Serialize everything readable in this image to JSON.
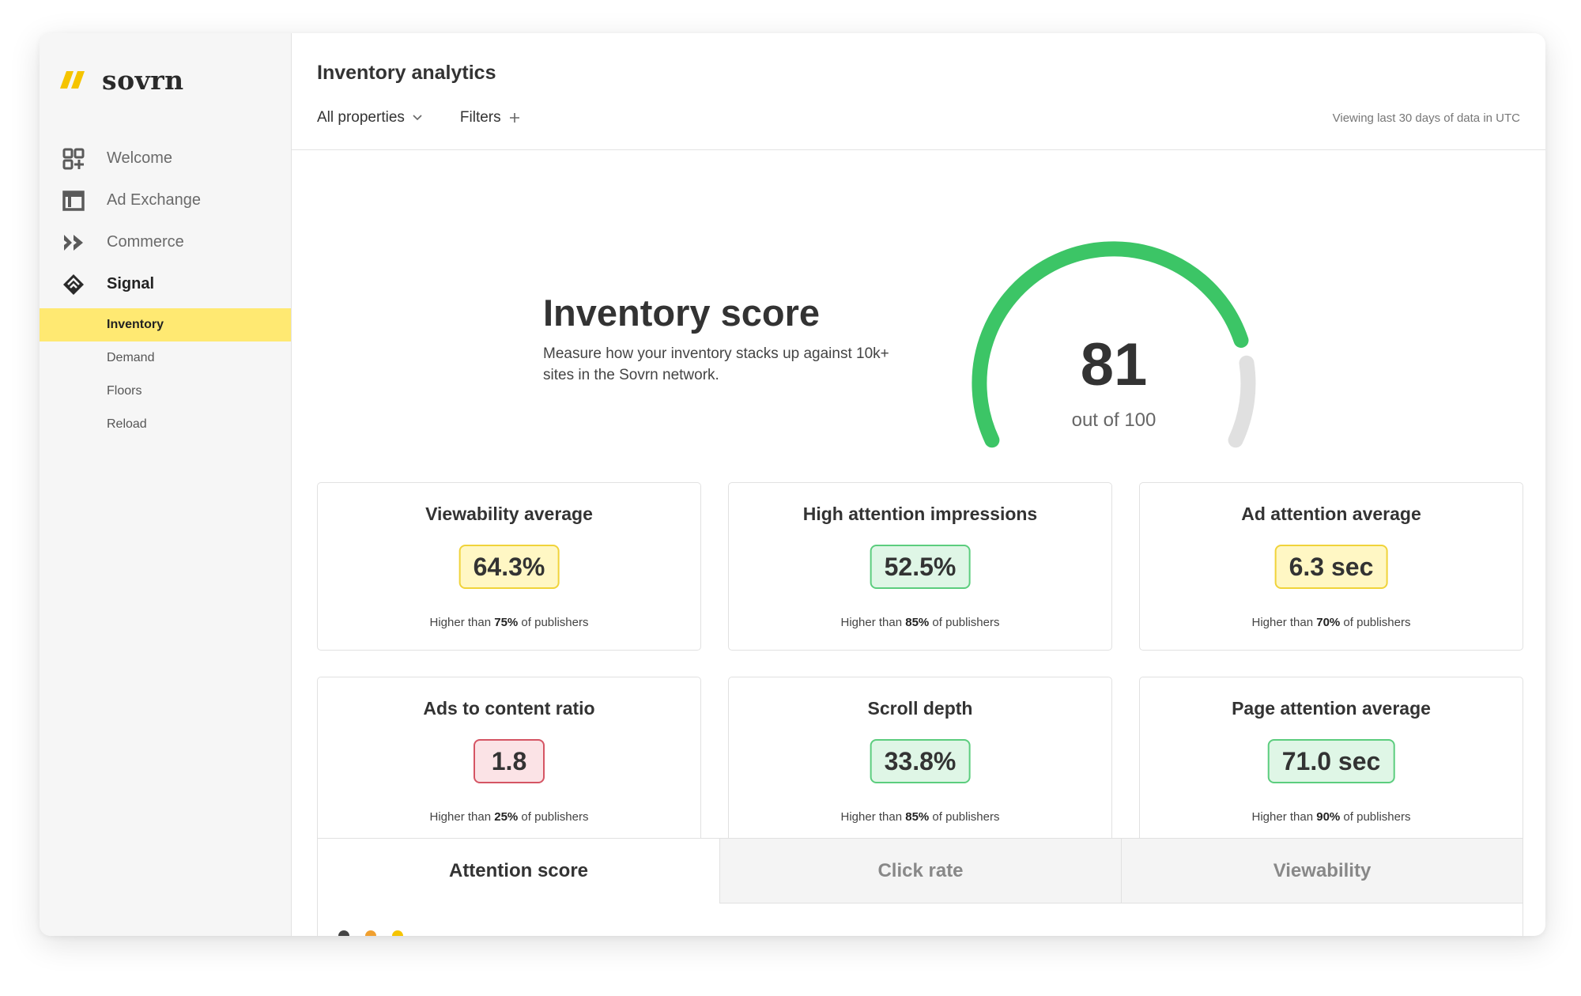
{
  "brand": {
    "name": "sovrn",
    "accent": "#f5c400"
  },
  "sidebar": {
    "items": [
      {
        "label": "Welcome",
        "icon": "grid-plus-icon"
      },
      {
        "label": "Ad Exchange",
        "icon": "window-icon"
      },
      {
        "label": "Commerce",
        "icon": "double-chevron-icon"
      },
      {
        "label": "Signal",
        "icon": "signal-diamond-icon"
      }
    ],
    "subitems": [
      "Inventory",
      "Demand",
      "Floors",
      "Reload"
    ],
    "active_subitem": "Inventory"
  },
  "header": {
    "title": "Inventory analytics",
    "properties_label": "All properties",
    "filters_label": "Filters",
    "range_note": "Viewing last 30 days of data in UTC"
  },
  "score": {
    "title": "Inventory score",
    "description": "Measure how your inventory stacks up against 10k+ sites in the Sovrn network.",
    "value": "81",
    "caption": "out of 100",
    "fraction": 0.81,
    "color": "#3cc566",
    "track_color": "#e0e0e0"
  },
  "metrics": [
    {
      "title": "Viewability average",
      "value": "64.3%",
      "tone": "yellow",
      "foot_pre": "Higher than ",
      "foot_pct": "75%",
      "foot_post": " of publishers"
    },
    {
      "title": "High attention impressions",
      "value": "52.5%",
      "tone": "green",
      "foot_pre": "Higher than ",
      "foot_pct": "85%",
      "foot_post": " of publishers"
    },
    {
      "title": "Ad attention average",
      "value": "6.3 sec",
      "tone": "yellow",
      "foot_pre": "Higher than ",
      "foot_pct": "70%",
      "foot_post": " of publishers"
    },
    {
      "title": "Ads to content ratio",
      "value": "1.8",
      "tone": "red",
      "foot_pre": "Higher than ",
      "foot_pct": "25%",
      "foot_post": " of publishers"
    },
    {
      "title": "Scroll depth",
      "value": "33.8%",
      "tone": "green",
      "foot_pre": "Higher than ",
      "foot_pct": "85%",
      "foot_post": " of publishers"
    },
    {
      "title": "Page attention average",
      "value": "71.0 sec",
      "tone": "green",
      "foot_pre": "Higher than ",
      "foot_pct": "90%",
      "foot_post": " of publishers"
    }
  ],
  "tabs": [
    "Attention score",
    "Click rate",
    "Viewability"
  ],
  "active_tab": "Attention score"
}
